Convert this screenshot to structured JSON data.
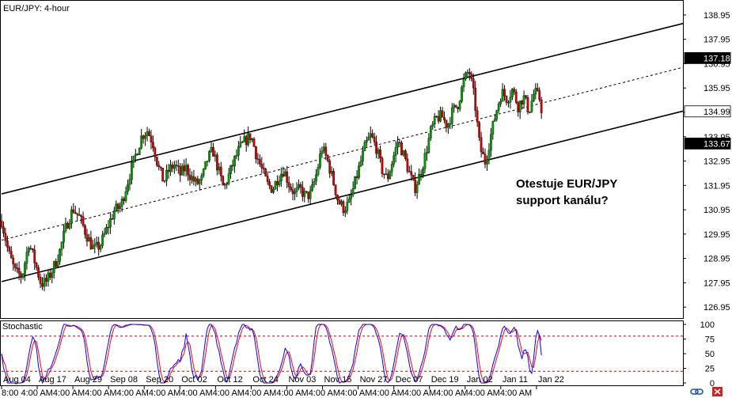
{
  "chart_data": {
    "type": "candlestick",
    "title": "EUR/JPY: 4-hour",
    "annotation_lines": [
      "Otestuje EUR/JPY",
      "support kanálu?"
    ],
    "price_axis": {
      "ylim": [
        126.5,
        139.5
      ],
      "ticks": [
        "138.95",
        "137.95",
        "136.95",
        "135.95",
        "134.95",
        "133.95",
        "132.95",
        "131.95",
        "130.95",
        "129.95",
        "128.95",
        "127.95",
        "126.95"
      ],
      "values": [
        138.95,
        137.95,
        136.95,
        135.95,
        134.95,
        133.95,
        132.95,
        131.95,
        130.95,
        129.95,
        128.95,
        127.95,
        126.95
      ],
      "price_labels": [
        {
          "text": "137.18",
          "value": 137.18,
          "style": "dark"
        },
        {
          "text": "134.99",
          "value": 134.99,
          "style": "light"
        },
        {
          "text": "133.67",
          "value": 133.67,
          "style": "dark"
        }
      ]
    },
    "date_axis": {
      "labels": [
        "Aug 04",
        "Aug 17",
        "Aug 29",
        "Sep 08",
        "Sep 20",
        "Oct 02",
        "Oct 12",
        "Oct 24",
        "Nov 03",
        "Nov 15",
        "Nov 27",
        "Dec 07",
        "Dec 19",
        "Jan 02",
        "Jan 11",
        "Jan 22"
      ],
      "bottom_strip_text": "8:00  4:00 AM4:00 AM4:00 AM4:00 AM4:00 AM4:00 AM4:00 AM4:00 AM4:00 AM4:00 AM4:00 AM4:00 AM4:00 AM4:00 AM4:00 AM4:00 AM"
    },
    "channel": {
      "upper": {
        "start": [
          0,
          131.6
        ],
        "end": [
          1,
          138.6
        ]
      },
      "middle": {
        "start": [
          0,
          129.7
        ],
        "end": [
          1,
          136.8
        ]
      },
      "lower": {
        "start": [
          0,
          128.0
        ],
        "end": [
          1,
          135.0
        ]
      }
    },
    "price_path": [
      [
        0.0,
        130.5
      ],
      [
        0.01,
        129.2
      ],
      [
        0.02,
        128.4
      ],
      [
        0.03,
        128.2
      ],
      [
        0.04,
        129.6
      ],
      [
        0.05,
        128.7
      ],
      [
        0.058,
        127.9
      ],
      [
        0.066,
        128.0
      ],
      [
        0.075,
        128.5
      ],
      [
        0.085,
        129.2
      ],
      [
        0.095,
        130.3
      ],
      [
        0.105,
        131.0
      ],
      [
        0.115,
        130.6
      ],
      [
        0.125,
        129.9
      ],
      [
        0.135,
        129.3
      ],
      [
        0.145,
        129.5
      ],
      [
        0.155,
        130.2
      ],
      [
        0.165,
        130.9
      ],
      [
        0.175,
        131.1
      ],
      [
        0.182,
        131.8
      ],
      [
        0.19,
        132.6
      ],
      [
        0.198,
        133.3
      ],
      [
        0.206,
        134.0
      ],
      [
        0.214,
        134.2
      ],
      [
        0.222,
        133.7
      ],
      [
        0.23,
        132.7
      ],
      [
        0.238,
        132.1
      ],
      [
        0.246,
        132.6
      ],
      [
        0.254,
        132.8
      ],
      [
        0.262,
        132.4
      ],
      [
        0.27,
        132.7
      ],
      [
        0.278,
        132.3
      ],
      [
        0.286,
        132.0
      ],
      [
        0.294,
        132.2
      ],
      [
        0.302,
        133.0
      ],
      [
        0.31,
        133.4
      ],
      [
        0.318,
        132.6
      ],
      [
        0.326,
        131.8
      ],
      [
        0.334,
        132.4
      ],
      [
        0.342,
        133.0
      ],
      [
        0.35,
        133.5
      ],
      [
        0.358,
        133.8
      ],
      [
        0.366,
        134.0
      ],
      [
        0.374,
        133.2
      ],
      [
        0.382,
        132.6
      ],
      [
        0.39,
        132.0
      ],
      [
        0.398,
        131.8
      ],
      [
        0.406,
        132.3
      ],
      [
        0.414,
        132.6
      ],
      [
        0.422,
        132.0
      ],
      [
        0.43,
        131.6
      ],
      [
        0.438,
        131.8
      ],
      [
        0.446,
        131.5
      ],
      [
        0.454,
        131.6
      ],
      [
        0.462,
        132.4
      ],
      [
        0.47,
        133.5
      ],
      [
        0.478,
        133.0
      ],
      [
        0.486,
        132.2
      ],
      [
        0.494,
        131.3
      ],
      [
        0.502,
        131.0
      ],
      [
        0.51,
        131.2
      ],
      [
        0.518,
        132.0
      ],
      [
        0.526,
        132.8
      ],
      [
        0.534,
        133.6
      ],
      [
        0.542,
        134.0
      ],
      [
        0.55,
        133.5
      ],
      [
        0.558,
        132.6
      ],
      [
        0.566,
        132.2
      ],
      [
        0.574,
        133.0
      ],
      [
        0.582,
        133.8
      ],
      [
        0.59,
        133.2
      ],
      [
        0.598,
        132.5
      ],
      [
        0.606,
        131.8
      ],
      [
        0.614,
        132.4
      ],
      [
        0.622,
        133.2
      ],
      [
        0.63,
        134.2
      ],
      [
        0.638,
        134.7
      ],
      [
        0.646,
        134.8
      ],
      [
        0.654,
        134.4
      ],
      [
        0.662,
        135.0
      ],
      [
        0.67,
        135.3
      ],
      [
        0.678,
        136.2
      ],
      [
        0.686,
        136.7
      ],
      [
        0.694,
        135.5
      ],
      [
        0.702,
        133.5
      ],
      [
        0.71,
        132.9
      ],
      [
        0.718,
        134.0
      ],
      [
        0.726,
        135.0
      ],
      [
        0.734,
        135.8
      ],
      [
        0.742,
        135.5
      ],
      [
        0.75,
        135.9
      ],
      [
        0.758,
        135.2
      ],
      [
        0.766,
        135.6
      ],
      [
        0.774,
        135.0
      ],
      [
        0.782,
        135.8
      ],
      [
        0.79,
        135.5
      ],
      [
        0.794,
        134.8
      ]
    ],
    "stochastic": {
      "label": "Stochastic",
      "ylim": [
        0,
        100
      ],
      "ticks": [
        "100",
        "75",
        "50",
        "25",
        "0"
      ],
      "values": [
        100,
        75,
        50,
        25,
        0
      ],
      "levels": [
        80,
        20
      ]
    }
  },
  "colors": {
    "bull": "#009900",
    "bear": "#cc0000",
    "wick": "#000000",
    "main_line": "#0000ff",
    "signal_line": "#ff0000",
    "level_line": "#cc0000",
    "grid": "#808080",
    "label_dark_bg": "#000000",
    "label_light_bg": "#ffffff"
  },
  "footer_icons": [
    "link-icon",
    "close-icon"
  ]
}
